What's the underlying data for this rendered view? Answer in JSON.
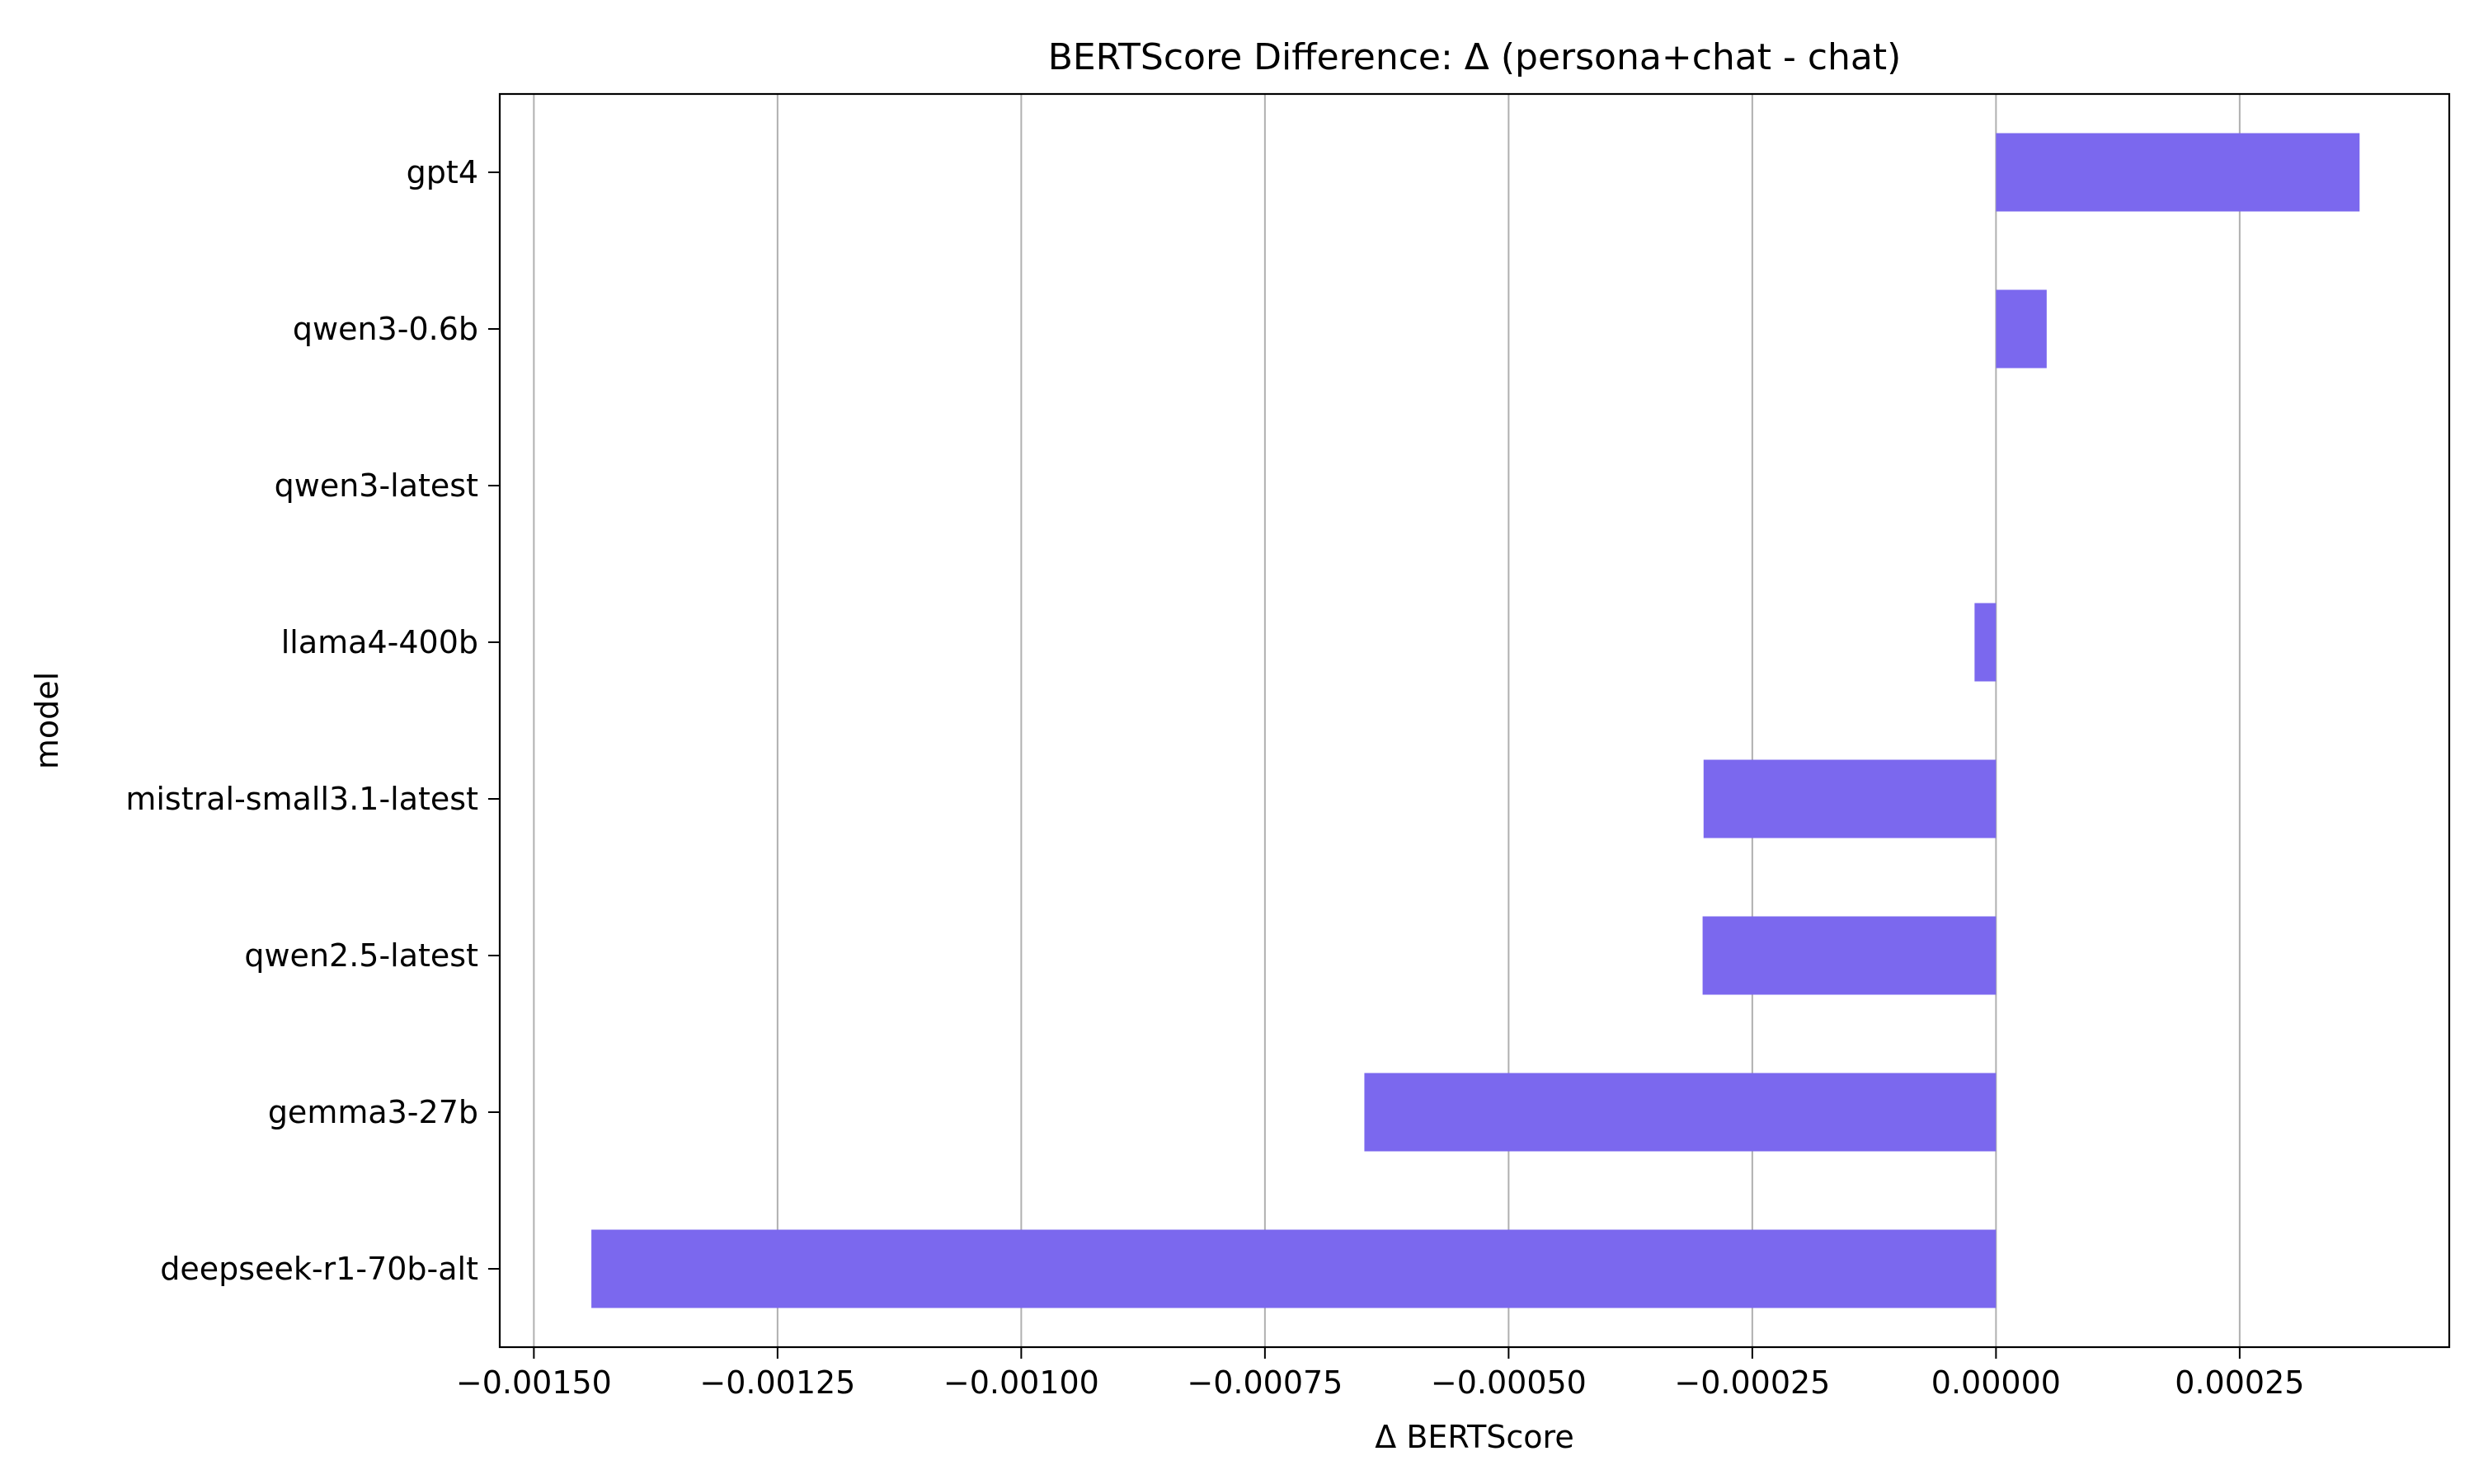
{
  "chart_data": {
    "type": "bar",
    "orientation": "horizontal",
    "title": "BERTScore Difference: Δ (persona+chat - chat)",
    "xlabel": "Δ BERTScore",
    "ylabel": "model",
    "categories": [
      "gpt4",
      "qwen3-0.6b",
      "qwen3-latest",
      "llama4-400b",
      "mistral-small3.1-latest",
      "qwen2.5-latest",
      "gemma3-27b",
      "deepseek-r1-70b-alt"
    ],
    "values": [
      0.000373,
      5.2e-05,
      0.0,
      -2.2e-05,
      -0.0003,
      -0.000301,
      -0.000648,
      -0.001441
    ],
    "xlim": [
      -0.001535,
      0.000465
    ],
    "xticks": [
      -0.0015,
      -0.00125,
      -0.001,
      -0.00075,
      -0.0005,
      -0.00025,
      0.0,
      0.00025
    ],
    "xtick_labels": [
      "−0.00150",
      "−0.00125",
      "−0.00100",
      "−0.00075",
      "−0.00050",
      "−0.00025",
      "0.00000",
      "0.00025"
    ],
    "grid": "x",
    "bar_color": "#7b68ee",
    "grid_color": "#b0b0b0"
  }
}
